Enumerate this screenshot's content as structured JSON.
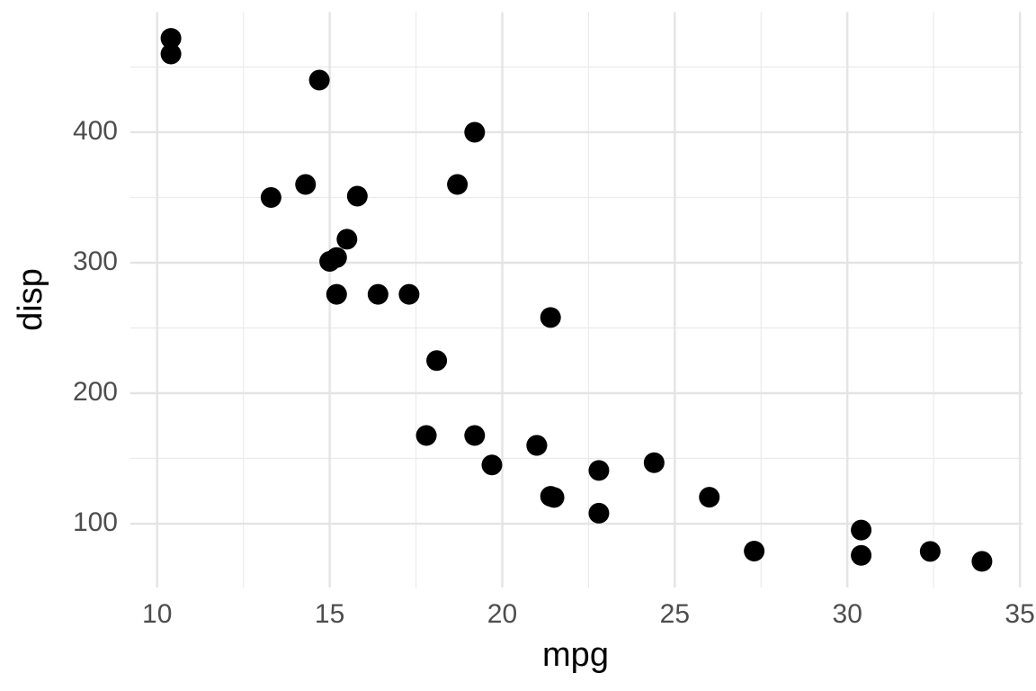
{
  "chart_data": {
    "type": "scatter",
    "x_label": "mpg",
    "y_label": "disp",
    "x": [
      21,
      21,
      22.8,
      21.4,
      18.7,
      18.1,
      14.3,
      24.4,
      22.8,
      19.2,
      17.8,
      16.4,
      17.3,
      15.2,
      10.4,
      10.4,
      14.7,
      32.4,
      30.4,
      33.9,
      21.5,
      15.5,
      15.2,
      13.3,
      19.2,
      27.3,
      26,
      30.4,
      15.8,
      19.7,
      15,
      21.4
    ],
    "values": [
      160,
      160,
      108,
      258,
      360,
      225,
      360,
      146.7,
      140.8,
      167.6,
      167.6,
      275.8,
      275.8,
      275.8,
      472,
      460,
      440,
      78.7,
      75.7,
      71.1,
      120.1,
      318,
      304,
      350,
      400,
      79,
      120.3,
      95.1,
      351,
      145,
      301,
      121
    ],
    "color": "#000000",
    "xlim": [
      9.225,
      35.075
    ],
    "ylim": [
      51.055,
      492.045
    ],
    "xticks": [
      10,
      15,
      20,
      25,
      30,
      35
    ],
    "yticks": [
      100,
      200,
      300,
      400
    ],
    "x_minor_grid": [
      12.5,
      17.5,
      22.5,
      27.5,
      32.5
    ],
    "y_minor_grid": [
      150,
      250,
      350,
      450
    ],
    "grid": true
  }
}
